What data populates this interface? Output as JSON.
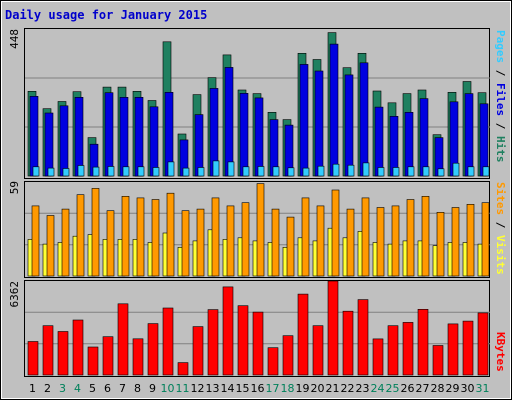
{
  "chart_data": [
    {
      "type": "bar",
      "title": "Daily usage for January 2015",
      "categories": [
        "1",
        "2",
        "3",
        "4",
        "5",
        "6",
        "7",
        "8",
        "9",
        "10",
        "11",
        "12",
        "13",
        "14",
        "15",
        "16",
        "17",
        "18",
        "19",
        "20",
        "21",
        "22",
        "23",
        "24",
        "25",
        "26",
        "27",
        "28",
        "29",
        "30",
        "31"
      ],
      "weekend_days": [
        "3",
        "4",
        "10",
        "11",
        "17",
        "18",
        "24",
        "25",
        "31"
      ],
      "ymax_label": "448",
      "ylim": [
        0,
        448
      ],
      "series": [
        {
          "name": "Hits",
          "values": [
            258,
            205,
            227,
            257,
            117,
            271,
            271,
            258,
            230,
            409,
            128,
            248,
            300,
            369,
            262,
            251,
            194,
            172,
            374,
            355,
            437,
            330,
            374,
            259,
            223,
            251,
            262,
            126,
            255,
            288,
            254
          ]
        },
        {
          "name": "Files",
          "values": [
            243,
            192,
            214,
            240,
            97,
            254,
            240,
            240,
            211,
            255,
            110,
            187,
            267,
            331,
            252,
            238,
            172,
            155,
            340,
            320,
            402,
            308,
            345,
            210,
            182,
            194,
            236,
            117,
            226,
            251,
            220
          ]
        },
        {
          "name": "Pages",
          "values": [
            28,
            24,
            23,
            32,
            27,
            29,
            28,
            28,
            26,
            43,
            24,
            26,
            46,
            43,
            28,
            29,
            28,
            25,
            24,
            30,
            36,
            33,
            40,
            26,
            26,
            28,
            28,
            22,
            39,
            28,
            28
          ]
        }
      ],
      "colors": {
        "Hits": "#1f8060",
        "Files": "#0000e0",
        "Pages": "#33ccff"
      }
    },
    {
      "type": "bar",
      "ymax_label": "59",
      "ylim": [
        0,
        59
      ],
      "series": [
        {
          "name": "Visits",
          "values": [
            23,
            20,
            21,
            25,
            26,
            23,
            23,
            23,
            21,
            27,
            18,
            22,
            29,
            23,
            24,
            22,
            21,
            18,
            24,
            22,
            30,
            24,
            28,
            21,
            20,
            22,
            22,
            19,
            21,
            21,
            20
          ]
        },
        {
          "name": "Sites",
          "values": [
            44,
            38,
            42,
            51,
            55,
            41,
            50,
            49,
            48,
            52,
            41,
            42,
            49,
            44,
            46,
            58,
            42,
            37,
            49,
            44,
            54,
            42,
            49,
            43,
            44,
            48,
            50,
            40,
            43,
            45,
            46
          ]
        }
      ],
      "colors": {
        "Visits": "#ffff33",
        "Sites": "#ff9900"
      }
    },
    {
      "type": "bar",
      "ymax_label": "6362",
      "ylim": [
        0,
        6362
      ],
      "series": [
        {
          "name": "KBytes",
          "values": [
            2266,
            3339,
            2943,
            3722,
            1894,
            2590,
            4819,
            2452,
            3479,
            4537,
            842,
            3277,
            4428,
            5964,
            4693,
            4254,
            1850,
            2658,
            5474,
            3340,
            6362,
            4317,
            5105,
            2445,
            3340,
            3560,
            4447,
            1997,
            3461,
            3650,
            4205
          ]
        }
      ],
      "colors": {
        "KBytes": "#ff0000"
      }
    }
  ]
}
